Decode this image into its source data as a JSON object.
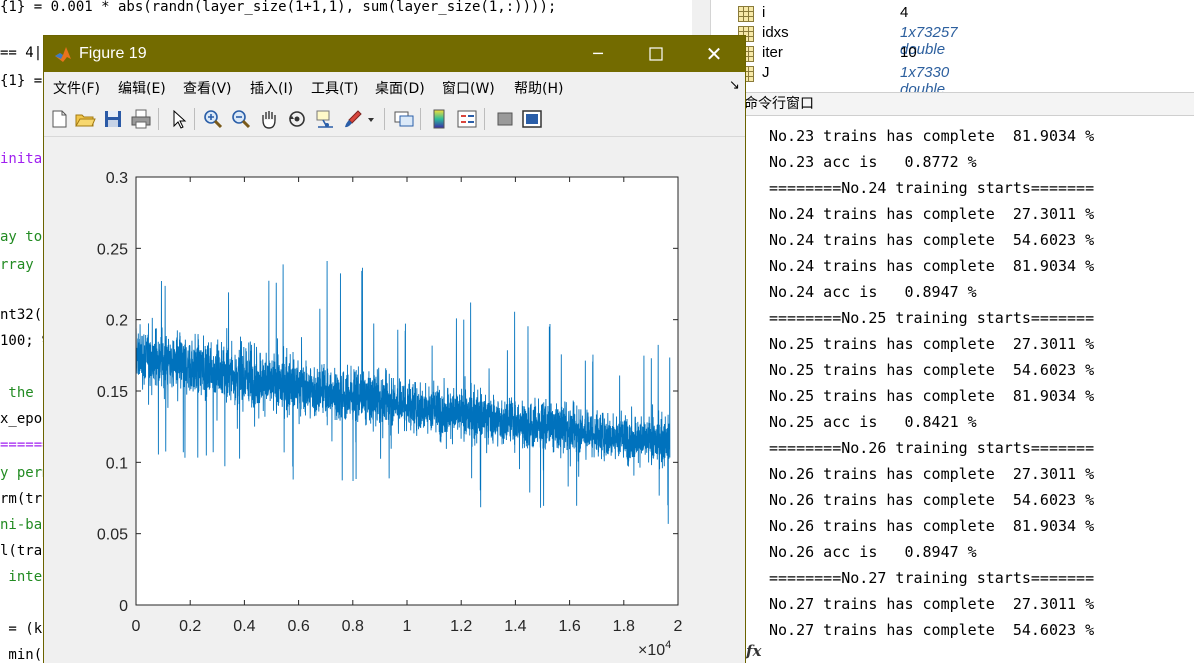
{
  "editor": {
    "lines": [
      {
        "text": "{1} = 0.001 * abs(randn(layer_size(1+1,1), sum(layer_size(1,:))));",
        "color": "black"
      },
      {
        "text": "== 4|",
        "color": "black"
      },
      {
        "text": "{1} =",
        "color": "black"
      },
      {
        "text": "inita",
        "color": "purple"
      },
      {
        "text": "ay to",
        "color": "green"
      },
      {
        "text": "rray",
        "color": "green"
      },
      {
        "text": "nt32(",
        "color": "black"
      },
      {
        "text": "100; %",
        "color": "black"
      },
      {
        "text": " the d",
        "color": "green"
      },
      {
        "text": "x_epoc",
        "color": "black"
      },
      {
        "text": "======",
        "color": "purple"
      },
      {
        "text": "y perm",
        "color": "green"
      },
      {
        "text": "rm(tra",
        "color": "black"
      },
      {
        "text": "ni-bat",
        "color": "green"
      },
      {
        "text": "l(tra",
        "color": "black"
      },
      {
        "text": " inter",
        "color": "green"
      },
      {
        "text": " = (k-",
        "color": "black"
      },
      {
        "text": " min(",
        "color": "black"
      }
    ]
  },
  "workspace": {
    "rows": [
      {
        "name": "i",
        "value": "4",
        "italic": false
      },
      {
        "name": "idxs",
        "value": "1x73257 double",
        "italic": true
      },
      {
        "name": "iter",
        "value": "10",
        "italic": false
      },
      {
        "name": "J",
        "value": "1x7330 double",
        "italic": true
      }
    ]
  },
  "command_window": {
    "title": "命令行窗口",
    "lines": [
      "No.23 trains has complete  81.9034 %",
      "No.23 acc is   0.8772 %",
      "========No.24 training starts=======",
      "No.24 trains has complete  27.3011 %",
      "No.24 trains has complete  54.6023 %",
      "No.24 trains has complete  81.9034 %",
      "No.24 acc is   0.8947 %",
      "========No.25 training starts=======",
      "No.25 trains has complete  27.3011 %",
      "No.25 trains has complete  54.6023 %",
      "No.25 trains has complete  81.9034 %",
      "No.25 acc is   0.8421 %",
      "========No.26 training starts=======",
      "No.26 trains has complete  27.3011 %",
      "No.26 trains has complete  54.6023 %",
      "No.26 trains has complete  81.9034 %",
      "No.26 acc is   0.8947 %",
      "========No.27 training starts=======",
      "No.27 trains has complete  27.3011 %",
      "No.27 trains has complete  54.6023 %"
    ],
    "prompt_icon": "fx-icon"
  },
  "figure": {
    "title": "Figure 19",
    "window_controls": {
      "minimize": "─",
      "maximize": "☐",
      "close": "✕"
    },
    "menu": [
      "文件(F)",
      "编辑(E)",
      "查看(V)",
      "插入(I)",
      "工具(T)",
      "桌面(D)",
      "窗口(W)",
      "帮助(H)"
    ],
    "menu_overflow": "↘",
    "toolbar": [
      "new-figure-icon",
      "open-file-icon",
      "save-icon",
      "print-icon",
      "pointer-icon",
      "zoom-in-icon",
      "zoom-out-icon",
      "pan-hand-icon",
      "rotate-3d-icon",
      "data-cursor-icon",
      "brush-icon",
      "brush-dropdown-icon",
      "link-plot-icon",
      "colorbar-icon",
      "legend-icon",
      "hide-plot-tools-icon",
      "show-plot-tools-icon"
    ],
    "colors": {
      "titlebar": "#736b00",
      "line": "#0072BD"
    }
  },
  "chart_data": {
    "type": "line",
    "title": "",
    "xlabel": "",
    "ylabel": "",
    "xlim": [
      0,
      20000
    ],
    "ylim": [
      0,
      0.3
    ],
    "xticks": [
      0,
      0.2,
      0.4,
      0.6,
      0.8,
      1,
      1.2,
      1.4,
      1.6,
      1.8,
      2
    ],
    "yticks": [
      0,
      0.05,
      0.1,
      0.15,
      0.2,
      0.25,
      0.3
    ],
    "x_exponent_label": "×10",
    "x_exponent_power": "4",
    "series": [
      {
        "color": "#0072BD",
        "n_points": 19700,
        "trend_x": [
          0,
          2500,
          5000,
          7500,
          10000,
          12500,
          15000,
          17500,
          19700
        ],
        "trend_y": [
          0.175,
          0.165,
          0.155,
          0.147,
          0.14,
          0.132,
          0.125,
          0.118,
          0.113
        ],
        "spread_low": [
          0.14,
          0.13,
          0.12,
          0.115,
          0.108,
          0.1,
          0.095,
          0.09,
          0.085
        ],
        "spread_high": [
          0.215,
          0.205,
          0.195,
          0.185,
          0.175,
          0.165,
          0.158,
          0.15,
          0.145
        ],
        "min_y": [
          0.105,
          0.1,
          0.09,
          0.08,
          0.075,
          0.068,
          0.06,
          0.055,
          0.05
        ],
        "max_y": [
          0.265,
          0.285,
          0.255,
          0.245,
          0.235,
          0.225,
          0.2,
          0.21,
          0.19
        ]
      }
    ]
  }
}
